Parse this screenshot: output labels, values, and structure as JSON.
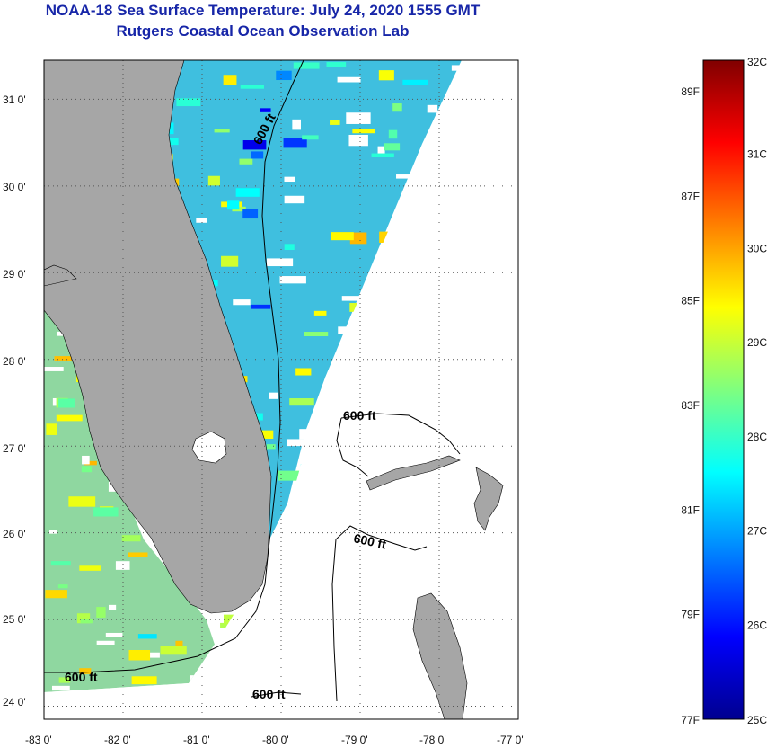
{
  "title": {
    "line1": "NOAA-18 Sea Surface Temperature:  July 24, 2020 1555 GMT",
    "line2": "Rutgers Coastal Ocean Observation Lab"
  },
  "colors": {
    "title": "#1726a8",
    "land": "#a6a6a6",
    "nodata": "#ffffff",
    "grid": "#555555"
  },
  "map": {
    "lon_range": [
      -83,
      -77
    ],
    "lat_range": [
      23.85,
      31.45
    ],
    "grid_style": "dotted",
    "x_ticks": [
      "-83 0'",
      "-82 0'",
      "-81 0'",
      "-80 0'",
      "-79 0'",
      "-78 0'",
      "-77 0'"
    ],
    "y_ticks": [
      "31 0'",
      "30 0'",
      "29 0'",
      "28 0'",
      "27 0'",
      "26 0'",
      "25 0'",
      "24 0'"
    ],
    "contour_labels": [
      "600 ft",
      "600 ft",
      "600 ft",
      "600 ft",
      "600 ft"
    ],
    "contour_depth": "600 ft"
  },
  "colorbar": {
    "celsius_labels": [
      "32C",
      "31C",
      "30C",
      "29C",
      "28C",
      "27C",
      "26C",
      "25C"
    ],
    "fahrenheit_labels": [
      "89F",
      "87F",
      "85F",
      "83F",
      "81F",
      "79F",
      "77F"
    ],
    "celsius_range": [
      25,
      32
    ],
    "fahrenheit_range": [
      77,
      89.6
    ],
    "colormap": "jet"
  }
}
